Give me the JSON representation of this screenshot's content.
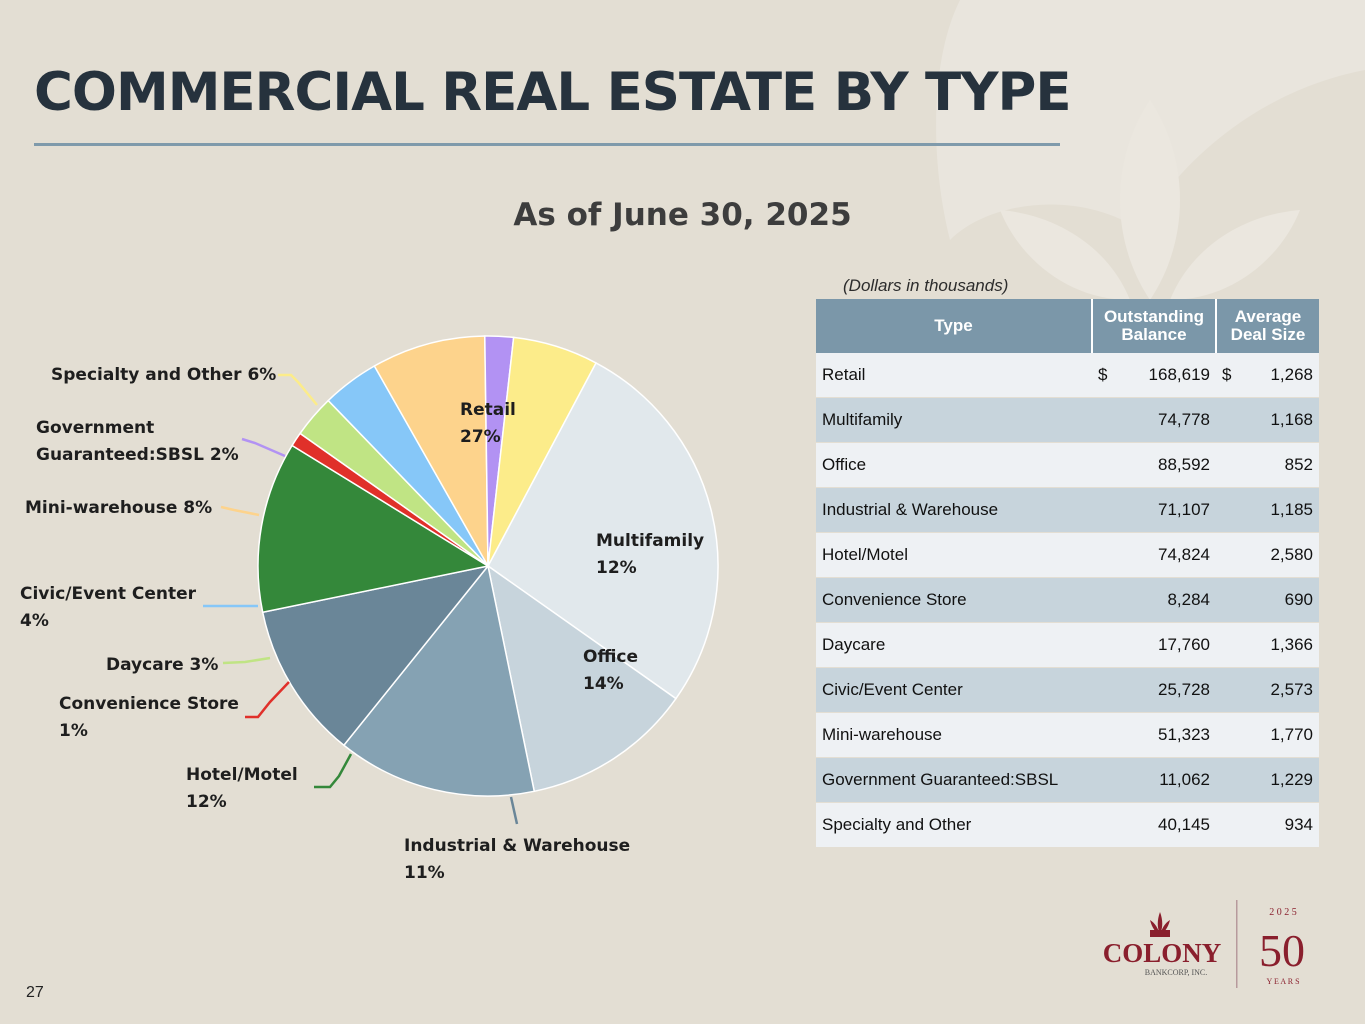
{
  "title": "COMMERCIAL REAL ESTATE BY TYPE",
  "subtitle": "As of June 30, 2025",
  "units_note": "(Dollars in thousands)",
  "page_number": "27",
  "logo": {
    "name": "COLONY",
    "sub": "BANKCORP, INC.",
    "year": "2 0 2 5",
    "anniversary": "50",
    "years": "Y E A R S"
  },
  "colors": {
    "background": "#e3ded3",
    "title": "#26323d",
    "header": "#7b97a9",
    "row_light": "#eef1f4",
    "row_dark": "#c7d4dc",
    "logo": "#8a1f2d"
  },
  "chart_data": {
    "type": "pie",
    "title": "As of June 30, 2025",
    "slices": [
      {
        "label": "Retail",
        "value": 27,
        "pct": "27%",
        "color": "#e1e8ec"
      },
      {
        "label": "Multifamily",
        "value": 12,
        "pct": "12%",
        "color": "#c7d4dc"
      },
      {
        "label": "Office",
        "value": 14,
        "pct": "14%",
        "color": "#85a2b3"
      },
      {
        "label": "Industrial & Warehouse",
        "value": 11,
        "pct": "11%",
        "color": "#6a8698"
      },
      {
        "label": "Hotel/Motel",
        "value": 12,
        "pct": "12%",
        "color": "#34883a"
      },
      {
        "label": "Convenience Store",
        "value": 1,
        "pct": "1%",
        "color": "#e0302a"
      },
      {
        "label": "Daycare",
        "value": 3,
        "pct": "3%",
        "color": "#c0e484"
      },
      {
        "label": "Civic/Event Center",
        "value": 4,
        "pct": "4%",
        "color": "#86c7f8"
      },
      {
        "label": "Mini-warehouse",
        "value": 8,
        "pct": "8%",
        "color": "#fdd38c"
      },
      {
        "label": "Government Guaranteed:SBSL",
        "value": 2,
        "pct": "2%",
        "color": "#b292f3"
      },
      {
        "label": "Specialty and Other",
        "value": 6,
        "pct": "6%",
        "color": "#fcec8a"
      }
    ],
    "labels": [
      {
        "lines": [
          "Retail",
          "27%"
        ]
      },
      {
        "lines": [
          "Multifamily",
          "12%"
        ]
      },
      {
        "lines": [
          "Office",
          "14%"
        ]
      },
      {
        "lines": [
          "Industrial & Warehouse",
          "11%"
        ]
      },
      {
        "lines": [
          "Hotel/Motel",
          "12%"
        ]
      },
      {
        "lines": [
          "Convenience Store",
          "1%"
        ]
      },
      {
        "lines": [
          "Daycare 3%"
        ]
      },
      {
        "lines": [
          "Civic/Event Center",
          "4%"
        ]
      },
      {
        "lines": [
          "Mini-warehouse 8%"
        ]
      },
      {
        "lines": [
          "Government",
          "Guaranteed:SBSL 2%"
        ]
      },
      {
        "lines": [
          "Specialty and Other 6%"
        ]
      }
    ]
  },
  "table": {
    "headers": {
      "type": "Type",
      "balance": "Outstanding Balance",
      "deal": "Average Deal Size"
    },
    "rows": [
      {
        "type": "Retail",
        "cur_balance": "$",
        "balance": "168,619",
        "cur_deal": "$",
        "deal": "1,268"
      },
      {
        "type": "Multifamily",
        "balance": "74,778",
        "deal": "1,168"
      },
      {
        "type": "Office",
        "balance": "88,592",
        "deal": "852"
      },
      {
        "type": "Industrial & Warehouse",
        "balance": "71,107",
        "deal": "1,185"
      },
      {
        "type": "Hotel/Motel",
        "balance": "74,824",
        "deal": "2,580"
      },
      {
        "type": "Convenience Store",
        "balance": "8,284",
        "deal": "690"
      },
      {
        "type": "Daycare",
        "balance": "17,760",
        "deal": "1,366"
      },
      {
        "type": "Civic/Event Center",
        "balance": "25,728",
        "deal": "2,573"
      },
      {
        "type": "Mini-warehouse",
        "balance": "51,323",
        "deal": "1,770"
      },
      {
        "type": "Government Guaranteed:SBSL",
        "balance": "11,062",
        "deal": "1,229"
      },
      {
        "type": "Specialty and Other",
        "balance": "40,145",
        "deal": "934"
      }
    ]
  }
}
